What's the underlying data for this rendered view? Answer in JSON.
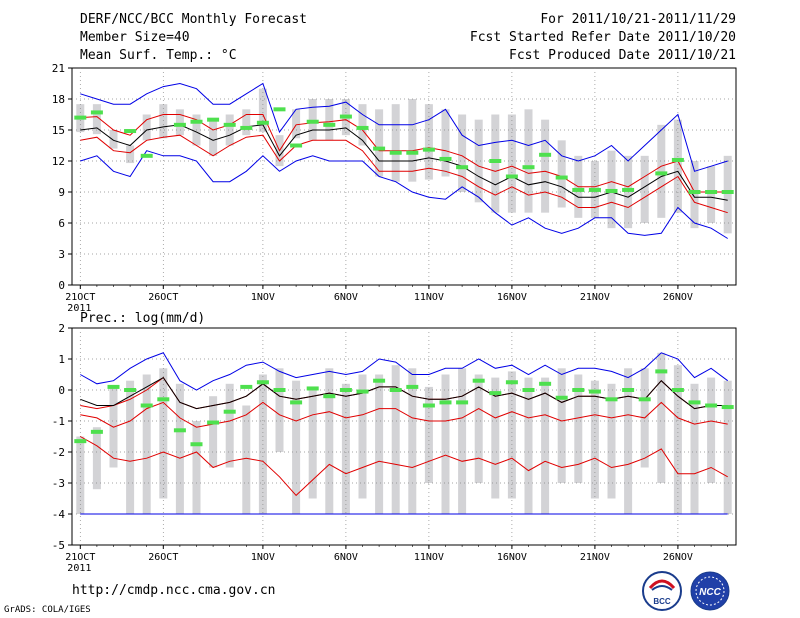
{
  "header": {
    "title": "DERF/NCC/BCC Monthly Forecast",
    "member_size": "Member Size=40",
    "variable": "Mean Surf. Temp.: °C",
    "period": "For 2011/10/21-2011/11/29",
    "refer_date": "Fcst Started Refer Date 2011/10/20",
    "produced_date": "Fcst Produced Date 2011/10/21"
  },
  "footer": {
    "url": "http://cmdp.ncc.cma.gov.cn",
    "grads": "GrADS: COLA/IGES",
    "logo_bcc": "BCC",
    "logo_ncc": "NCC"
  },
  "colors": {
    "box": "#d3d3d6",
    "green": "#4ee04e",
    "blue": "#0000e6",
    "red": "#e00000",
    "black": "#000000",
    "grid": "#888888"
  },
  "chart_data": [
    {
      "type": "box",
      "title": "Mean Surf. Temp.: °C",
      "ylim": [
        0,
        21
      ],
      "yticks": [
        0,
        3,
        6,
        9,
        12,
        15,
        18,
        21
      ],
      "x_tick_labels": [
        "21OCT",
        "26OCT",
        "1NOV",
        "6NOV",
        "11NOV",
        "16NOV",
        "21NOV",
        "26NOV"
      ],
      "x_tick_day_index": [
        0,
        5,
        11,
        16,
        21,
        26,
        31,
        36
      ],
      "x_year_label": "2011",
      "box_low": [
        14.8,
        14.6,
        13.2,
        11.8,
        14.0,
        14.2,
        14.5,
        13.5,
        12.5,
        13.5,
        14.5,
        14.8,
        11.5,
        14.2,
        14.0,
        14.0,
        14.5,
        13.5,
        10.5,
        10.0,
        10.0,
        10.2,
        10.5,
        9.0,
        8.0,
        7.0,
        7.0,
        7.0,
        7.0,
        7.5,
        6.5,
        6.5,
        5.5,
        5.5,
        6.0,
        6.5,
        7.0,
        5.5,
        6.0,
        5.0
      ],
      "box_high": [
        17.5,
        17.5,
        15.0,
        13.5,
        16.5,
        17.5,
        17.0,
        16.5,
        16.0,
        16.5,
        17.0,
        19.0,
        14.5,
        17.0,
        18.0,
        18.0,
        18.0,
        17.5,
        17.0,
        17.5,
        18.0,
        17.5,
        17.0,
        16.5,
        16.0,
        16.5,
        16.5,
        17.0,
        16.0,
        14.0,
        12.5,
        12.0,
        13.0,
        12.5,
        12.5,
        15.5,
        16.0,
        12.0,
        11.5,
        12.5
      ],
      "green": [
        16.2,
        16.7,
        14.9,
        12.5,
        15.5,
        15.8,
        16.0,
        15.5,
        15.2,
        15.7,
        17.0,
        13.5,
        15.8,
        15.5,
        16.3,
        15.2,
        13.2,
        12.8,
        12.8,
        13.1,
        12.2,
        11.4,
        12.0,
        10.5,
        11.4,
        12.6,
        10.4,
        9.2,
        9.2,
        9.1,
        9.2,
        10.8,
        12.1,
        9.0,
        9.0,
        9.0
      ],
      "green_day": [
        0,
        1,
        3,
        4,
        6,
        7,
        8,
        9,
        10,
        11,
        12,
        13,
        14,
        15,
        16,
        17,
        18,
        19,
        20,
        21,
        22,
        23,
        25,
        26,
        27,
        28,
        29,
        30,
        31,
        32,
        33,
        35,
        36,
        37,
        38,
        39
      ],
      "blue_max": [
        18.5,
        18.0,
        17.5,
        17.5,
        18.5,
        19.2,
        19.5,
        19.0,
        17.5,
        17.5,
        18.5,
        19.5,
        14.8,
        17.0,
        17.2,
        17.3,
        17.7,
        16.5,
        15.5,
        15.5,
        15.5,
        16.0,
        17.0,
        14.5,
        13.5,
        13.8,
        14.0,
        13.5,
        14.0,
        12.5,
        12.0,
        12.5,
        13.5,
        12.0,
        13.5,
        15.0,
        16.5,
        11.0,
        11.5,
        12.0
      ],
      "red_upper": [
        16.2,
        16.3,
        15.0,
        14.5,
        16.0,
        16.5,
        16.5,
        16.0,
        15.0,
        15.5,
        16.5,
        16.5,
        13.0,
        15.5,
        15.7,
        15.8,
        16.0,
        15.0,
        13.0,
        13.0,
        13.0,
        13.3,
        13.0,
        12.5,
        11.5,
        11.0,
        11.5,
        10.8,
        11.0,
        10.5,
        9.5,
        9.5,
        10.0,
        9.5,
        10.5,
        11.5,
        12.0,
        9.0,
        9.0,
        9.0
      ],
      "ens_mean": [
        15.0,
        15.2,
        14.0,
        13.5,
        15.0,
        15.3,
        15.5,
        14.8,
        14.0,
        14.5,
        15.3,
        15.5,
        12.5,
        14.5,
        15.0,
        15.0,
        15.2,
        14.0,
        12.0,
        12.0,
        12.0,
        12.3,
        12.0,
        11.5,
        10.5,
        9.7,
        10.5,
        9.7,
        10.0,
        9.5,
        8.5,
        8.5,
        9.0,
        8.5,
        9.5,
        10.5,
        11.0,
        8.5,
        8.5,
        8.2
      ],
      "red_lower": [
        14.0,
        14.3,
        13.0,
        12.8,
        14.0,
        14.3,
        14.5,
        13.5,
        12.5,
        13.5,
        14.3,
        14.5,
        12.0,
        13.5,
        14.0,
        14.0,
        14.0,
        13.0,
        11.0,
        11.0,
        11.0,
        11.3,
        11.0,
        10.5,
        9.5,
        8.7,
        9.5,
        8.7,
        9.0,
        8.5,
        7.5,
        7.5,
        8.0,
        7.5,
        8.5,
        9.5,
        10.5,
        8.0,
        7.5,
        7.0
      ],
      "blue_min": [
        12.0,
        12.5,
        11.0,
        10.5,
        13.0,
        12.5,
        12.5,
        12.0,
        10.0,
        10.0,
        11.0,
        12.5,
        11.0,
        12.0,
        12.5,
        12.0,
        12.0,
        12.0,
        10.5,
        10.0,
        9.0,
        8.5,
        8.3,
        9.5,
        8.5,
        7.0,
        5.8,
        6.5,
        5.5,
        5.0,
        5.5,
        6.5,
        6.5,
        5.0,
        4.8,
        5.0,
        7.5,
        6.0,
        5.5,
        4.5
      ]
    },
    {
      "type": "box",
      "title": "Prec.: log(mm/d)",
      "ylim": [
        -5,
        2
      ],
      "yticks": [
        -5,
        -4,
        -3,
        -2,
        -1,
        0,
        1,
        2
      ],
      "x_tick_labels": [
        "21OCT",
        "26OCT",
        "1NOV",
        "6NOV",
        "11NOV",
        "16NOV",
        "21NOV",
        "26NOV"
      ],
      "x_tick_day_index": [
        0,
        5,
        11,
        16,
        21,
        26,
        31,
        36
      ],
      "x_year_label": "2011",
      "box_low": [
        -4.0,
        -3.2,
        -2.5,
        -4.0,
        -4.0,
        -3.5,
        -4.0,
        -4.0,
        -2.5,
        -2.5,
        -4.0,
        -4.0,
        -2.0,
        -4.0,
        -3.5,
        -4.0,
        -4.0,
        -3.5,
        -4.0,
        -4.0,
        -4.0,
        -3.0,
        -4.0,
        -4.0,
        -3.0,
        -3.5,
        -3.5,
        -4.0,
        -4.0,
        -3.0,
        -3.0,
        -3.5,
        -3.5,
        -4.0,
        -2.5,
        -3.0,
        -4.0,
        -4.0,
        -3.0,
        -4.0
      ],
      "box_high": [
        -1.5,
        -1.2,
        0.1,
        0.3,
        0.5,
        0.7,
        0.2,
        -1.0,
        -0.2,
        0.2,
        -0.5,
        0.5,
        0.7,
        0.3,
        0.0,
        0.7,
        0.2,
        0.5,
        0.5,
        0.8,
        0.7,
        0.1,
        0.5,
        0.7,
        0.5,
        0.4,
        0.6,
        0.4,
        0.4,
        0.7,
        0.5,
        0.3,
        0.2,
        0.7,
        0.7,
        1.2,
        0.8,
        0.2,
        0.4,
        0.3
      ],
      "green": [
        -1.65,
        -1.35,
        0.1,
        0.0,
        -0.5,
        -0.3,
        -1.3,
        -1.75,
        -1.05,
        -0.7,
        0.1,
        0.25,
        0.0,
        -0.4,
        0.05,
        -0.2,
        0.0,
        -0.05,
        0.3,
        0.0,
        0.1,
        -0.5,
        -0.4,
        -0.4,
        0.3,
        -0.1,
        0.25,
        0.0,
        0.2,
        -0.25,
        0.0,
        -0.05,
        -0.3,
        0.0,
        -0.3,
        0.6,
        0.0,
        -0.4,
        -0.5,
        -0.55
      ],
      "green_day": [
        0,
        1,
        2,
        3,
        4,
        5,
        6,
        7,
        8,
        9,
        10,
        11,
        12,
        13,
        14,
        15,
        16,
        17,
        18,
        19,
        20,
        21,
        22,
        23,
        24,
        25,
        26,
        27,
        28,
        29,
        30,
        31,
        32,
        33,
        34,
        35,
        36,
        37,
        38,
        39
      ],
      "blue_max": [
        0.5,
        0.2,
        0.3,
        0.7,
        1.0,
        1.2,
        0.3,
        0.0,
        0.3,
        0.5,
        0.8,
        0.9,
        0.6,
        0.4,
        0.5,
        0.6,
        0.5,
        0.6,
        1.0,
        0.9,
        0.5,
        0.5,
        0.7,
        0.7,
        1.0,
        0.7,
        0.8,
        0.5,
        0.8,
        0.5,
        0.7,
        0.7,
        0.6,
        0.4,
        0.7,
        1.2,
        1.0,
        0.4,
        0.7,
        0.3
      ],
      "red_upper": [
        -0.5,
        -0.6,
        -0.5,
        -0.3,
        0.0,
        0.4,
        -0.4,
        -0.6,
        -0.5,
        -0.4,
        -0.2,
        0.2,
        -0.2,
        -0.3,
        -0.2,
        -0.1,
        -0.2,
        -0.1,
        0.1,
        0.1,
        -0.2,
        -0.3,
        -0.3,
        -0.2,
        0.1,
        -0.2,
        -0.1,
        -0.3,
        -0.1,
        -0.4,
        -0.2,
        -0.2,
        -0.3,
        -0.2,
        -0.3,
        0.3,
        -0.2,
        -0.6,
        -0.5,
        -0.5
      ],
      "ens_mean": [
        -0.3,
        -0.5,
        -0.5,
        -0.2,
        0.1,
        0.4,
        -0.4,
        -0.6,
        -0.5,
        -0.4,
        -0.2,
        0.2,
        -0.2,
        -0.3,
        -0.2,
        -0.1,
        -0.2,
        -0.1,
        0.1,
        0.1,
        -0.2,
        -0.3,
        -0.3,
        -0.2,
        0.1,
        -0.2,
        -0.1,
        -0.3,
        -0.1,
        -0.4,
        -0.2,
        -0.2,
        -0.3,
        -0.2,
        -0.3,
        0.3,
        -0.2,
        -0.6,
        -0.5,
        -0.5
      ],
      "red_lower": [
        -0.8,
        -0.9,
        -1.2,
        -1.0,
        -0.6,
        -0.4,
        -0.9,
        -1.2,
        -1.1,
        -1.0,
        -0.8,
        -0.4,
        -0.8,
        -1.0,
        -0.8,
        -0.7,
        -0.9,
        -0.8,
        -0.6,
        -0.6,
        -0.9,
        -1.0,
        -1.0,
        -0.9,
        -0.6,
        -0.9,
        -0.7,
        -0.9,
        -0.8,
        -1.0,
        -0.9,
        -0.8,
        -0.9,
        -0.8,
        -0.9,
        -0.4,
        -0.9,
        -1.1,
        -1.0,
        -1.1
      ],
      "red_min": [
        -1.5,
        -1.8,
        -2.2,
        -2.3,
        -2.2,
        -2.0,
        -2.2,
        -2.0,
        -2.5,
        -2.3,
        -2.2,
        -2.3,
        -2.8,
        -3.4,
        -2.9,
        -2.4,
        -2.7,
        -2.5,
        -2.3,
        -2.4,
        -2.5,
        -2.3,
        -2.1,
        -2.3,
        -2.2,
        -2.4,
        -2.2,
        -2.6,
        -2.3,
        -2.5,
        -2.4,
        -2.2,
        -2.5,
        -2.4,
        -2.2,
        -1.9,
        -2.7,
        -2.7,
        -2.5,
        -2.8
      ],
      "floor_line": -4.0
    }
  ]
}
